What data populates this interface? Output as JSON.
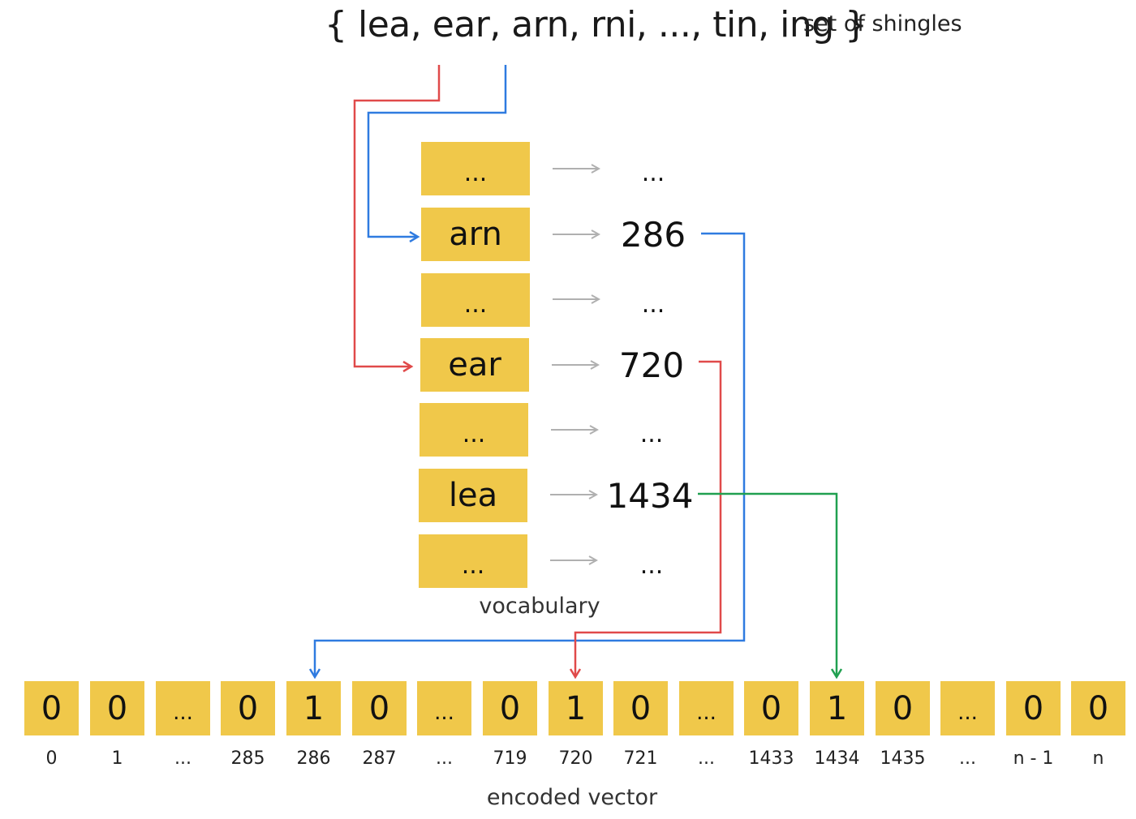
{
  "shingle_set": {
    "text": "{ lea, ear, arn, rni, ..., tin, ing }",
    "caption": "set of shingles"
  },
  "vocabulary": {
    "caption": "vocabulary",
    "rows": [
      {
        "token": "...",
        "index": "..."
      },
      {
        "token": "arn",
        "index": "286"
      },
      {
        "token": "...",
        "index": "..."
      },
      {
        "token": "ear",
        "index": "720"
      },
      {
        "token": "...",
        "index": "..."
      },
      {
        "token": "lea",
        "index": "1434"
      },
      {
        "token": "...",
        "index": "..."
      }
    ]
  },
  "encoded_vector": {
    "caption": "encoded vector",
    "cells": [
      {
        "value": "0",
        "index": "0"
      },
      {
        "value": "0",
        "index": "1"
      },
      {
        "value": "...",
        "index": "..."
      },
      {
        "value": "0",
        "index": "285"
      },
      {
        "value": "1",
        "index": "286"
      },
      {
        "value": "0",
        "index": "287"
      },
      {
        "value": "...",
        "index": "..."
      },
      {
        "value": "0",
        "index": "719"
      },
      {
        "value": "1",
        "index": "720"
      },
      {
        "value": "0",
        "index": "721"
      },
      {
        "value": "...",
        "index": "..."
      },
      {
        "value": "0",
        "index": "1433"
      },
      {
        "value": "1",
        "index": "1434"
      },
      {
        "value": "0",
        "index": "1435"
      },
      {
        "value": "...",
        "index": "..."
      },
      {
        "value": "0",
        "index": "n - 1"
      },
      {
        "value": "0",
        "index": "n"
      }
    ]
  },
  "colors": {
    "cell_fill": "#f0c84a",
    "arrow_red": "#e04a4a",
    "arrow_blue": "#2f7be0",
    "arrow_green": "#20a050",
    "arrow_gray": "#b0b0b0"
  }
}
